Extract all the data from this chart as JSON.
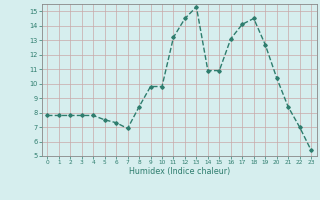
{
  "x": [
    0,
    1,
    2,
    3,
    4,
    5,
    6,
    7,
    8,
    9,
    10,
    11,
    12,
    13,
    14,
    15,
    16,
    17,
    18,
    19,
    20,
    21,
    22,
    23
  ],
  "y": [
    7.8,
    7.8,
    7.8,
    7.8,
    7.8,
    7.5,
    7.3,
    6.9,
    8.4,
    9.8,
    9.8,
    13.2,
    14.5,
    15.3,
    10.9,
    10.9,
    13.1,
    14.1,
    14.5,
    12.7,
    10.4,
    8.4,
    7.0,
    5.4
  ],
  "line_color": "#2e7d6e",
  "marker": "D",
  "markersize": 1.8,
  "linewidth": 1.0,
  "xlabel": "Humidex (Indice chaleur)",
  "xlim": [
    -0.5,
    23.5
  ],
  "ylim": [
    5,
    15.5
  ],
  "yticks": [
    5,
    6,
    7,
    8,
    9,
    10,
    11,
    12,
    13,
    14,
    15
  ],
  "xticks": [
    0,
    1,
    2,
    3,
    4,
    5,
    6,
    7,
    8,
    9,
    10,
    11,
    12,
    13,
    14,
    15,
    16,
    17,
    18,
    19,
    20,
    21,
    22,
    23
  ],
  "bg_color": "#d6eeee",
  "grid_color": "#c8a8a8",
  "tick_color": "#2e7d6e",
  "label_color": "#2e7d6e",
  "axis_color": "#888888"
}
